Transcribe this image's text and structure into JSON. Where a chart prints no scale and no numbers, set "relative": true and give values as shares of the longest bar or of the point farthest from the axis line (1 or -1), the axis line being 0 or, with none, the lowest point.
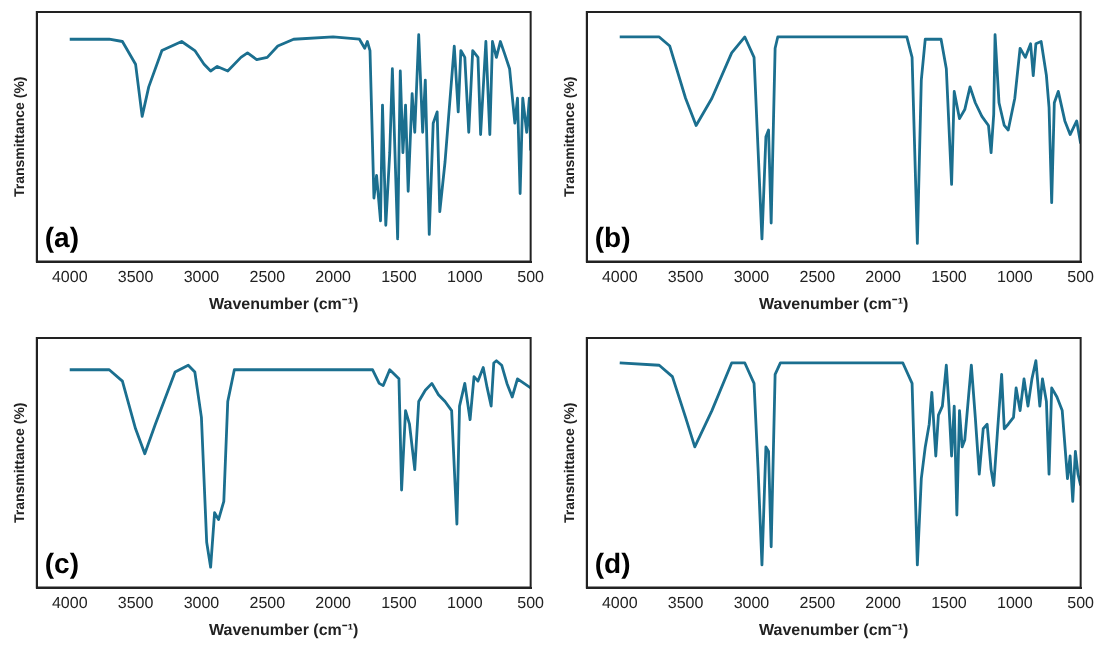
{
  "chart_data": [
    {
      "type": "line",
      "xlabel": "Wavenumber (cm⁻¹)",
      "ylabel": "Transmittance (%)",
      "annotations": [
        "(a)"
      ],
      "relative": true,
      "grid": false,
      "tick_labels": "x",
      "xlim": [
        4250,
        500
      ],
      "xticks": [
        4000,
        3500,
        3000,
        2500,
        2000,
        1500,
        1000,
        500
      ],
      "x": [
        4000,
        3700,
        3600,
        3500,
        3450,
        3400,
        3300,
        3150,
        3050,
        2980,
        2930,
        2880,
        2800,
        2700,
        2650,
        2580,
        2500,
        2420,
        2300,
        2000,
        1800,
        1760,
        1740,
        1720,
        1690,
        1670,
        1640,
        1625,
        1600,
        1570,
        1550,
        1510,
        1490,
        1470,
        1450,
        1430,
        1400,
        1380,
        1350,
        1320,
        1300,
        1270,
        1240,
        1210,
        1190,
        1150,
        1120,
        1080,
        1050,
        1030,
        1000,
        970,
        940,
        900,
        880,
        840,
        810,
        790,
        760,
        730,
        700,
        660,
        620,
        600,
        580,
        560,
        530,
        510,
        500
      ],
      "series": [
        {
          "color": "#1b6f8f",
          "values": [
            0.98,
            0.98,
            0.97,
            0.87,
            0.64,
            0.77,
            0.93,
            0.97,
            0.93,
            0.87,
            0.84,
            0.86,
            0.84,
            0.9,
            0.92,
            0.89,
            0.9,
            0.95,
            0.98,
            0.99,
            0.98,
            0.94,
            0.97,
            0.93,
            0.28,
            0.38,
            0.18,
            0.69,
            0.16,
            0.48,
            0.85,
            0.1,
            0.84,
            0.48,
            0.69,
            0.31,
            0.74,
            0.57,
            1,
            0.57,
            0.8,
            0.12,
            0.61,
            0.66,
            0.22,
            0.44,
            0.66,
            0.95,
            0.66,
            0.93,
            0.9,
            0.57,
            0.93,
            0.9,
            0.56,
            0.97,
            0.56,
            0.97,
            0.9,
            0.97,
            0.92,
            0.85,
            0.61,
            0.72,
            0.3,
            0.72,
            0.57,
            0.72,
            0.49
          ]
        }
      ]
    },
    {
      "type": "line",
      "xlabel": "Wavenumber (cm⁻¹)",
      "ylabel": "Transmittance (%)",
      "annotations": [
        "(b)"
      ],
      "relative": true,
      "grid": false,
      "tick_labels": "x",
      "xlim": [
        4250,
        500
      ],
      "xticks": [
        4000,
        3500,
        3000,
        2500,
        2000,
        1500,
        1000,
        500
      ],
      "x": [
        4000,
        3700,
        3620,
        3500,
        3420,
        3300,
        3150,
        3050,
        2980,
        2950,
        2920,
        2890,
        2870,
        2850,
        2820,
        2800,
        2000,
        1820,
        1780,
        1740,
        1710,
        1680,
        1560,
        1520,
        1480,
        1460,
        1420,
        1380,
        1340,
        1300,
        1250,
        1200,
        1180,
        1160,
        1150,
        1120,
        1080,
        1050,
        1000,
        960,
        920,
        880,
        860,
        840,
        800,
        760,
        740,
        720,
        700,
        670,
        620,
        580,
        530,
        500
      ],
      "series": [
        {
          "color": "#1b6f8f",
          "values": [
            0.99,
            0.99,
            0.95,
            0.72,
            0.6,
            0.72,
            0.92,
            0.99,
            0.9,
            0.5,
            0.1,
            0.55,
            0.58,
            0.17,
            0.94,
            0.99,
            0.99,
            0.99,
            0.9,
            0.08,
            0.8,
            0.98,
            0.98,
            0.85,
            0.34,
            0.75,
            0.63,
            0.67,
            0.77,
            0.7,
            0.64,
            0.6,
            0.48,
            0.65,
            1,
            0.7,
            0.6,
            0.58,
            0.72,
            0.94,
            0.9,
            0.96,
            0.82,
            0.96,
            0.97,
            0.82,
            0.68,
            0.26,
            0.7,
            0.75,
            0.62,
            0.56,
            0.62,
            0.52
          ]
        }
      ]
    },
    {
      "type": "line",
      "xlabel": "Wavenumber (cm⁻¹)",
      "ylabel": "Transmittance (%)",
      "annotations": [
        "(c)"
      ],
      "relative": true,
      "grid": false,
      "tick_labels": "x",
      "xlim": [
        4250,
        500
      ],
      "xticks": [
        4000,
        3500,
        3000,
        2500,
        2000,
        1500,
        1000,
        500
      ],
      "x": [
        4000,
        3700,
        3600,
        3500,
        3430,
        3350,
        3200,
        3100,
        3050,
        3000,
        2960,
        2930,
        2900,
        2870,
        2830,
        2800,
        2750,
        1700,
        1650,
        1620,
        1570,
        1500,
        1480,
        1450,
        1420,
        1380,
        1350,
        1300,
        1250,
        1200,
        1150,
        1100,
        1060,
        1040,
        1000,
        960,
        930,
        900,
        860,
        830,
        800,
        780,
        760,
        720,
        680,
        640,
        600,
        550,
        500
      ],
      "series": [
        {
          "color": "#1b6f8f",
          "values": [
            0.96,
            0.96,
            0.91,
            0.7,
            0.59,
            0.72,
            0.95,
            0.98,
            0.95,
            0.75,
            0.2,
            0.09,
            0.33,
            0.3,
            0.38,
            0.82,
            0.96,
            0.96,
            0.9,
            0.89,
            0.96,
            0.92,
            0.43,
            0.78,
            0.72,
            0.52,
            0.82,
            0.87,
            0.9,
            0.85,
            0.82,
            0.78,
            0.28,
            0.8,
            0.9,
            0.74,
            0.93,
            0.91,
            0.97,
            0.88,
            0.8,
            0.99,
            1,
            0.98,
            0.9,
            0.84,
            0.92,
            0.9,
            0.88
          ]
        }
      ]
    },
    {
      "type": "line",
      "xlabel": "Wavenumber (cm⁻¹)",
      "ylabel": "Transmittance (%)",
      "annotations": [
        "(d)"
      ],
      "relative": true,
      "grid": false,
      "tick_labels": "x",
      "xlim": [
        4250,
        500
      ],
      "xticks": [
        4000,
        3500,
        3000,
        2500,
        2000,
        1500,
        1000,
        500
      ],
      "x": [
        4000,
        3700,
        3600,
        3500,
        3430,
        3300,
        3150,
        3050,
        2980,
        2950,
        2920,
        2890,
        2870,
        2850,
        2820,
        2780,
        1850,
        1780,
        1740,
        1710,
        1680,
        1650,
        1630,
        1600,
        1580,
        1550,
        1520,
        1500,
        1480,
        1460,
        1440,
        1420,
        1400,
        1380,
        1350,
        1330,
        1300,
        1270,
        1240,
        1210,
        1180,
        1160,
        1130,
        1100,
        1080,
        1050,
        1010,
        990,
        960,
        930,
        900,
        870,
        840,
        810,
        790,
        760,
        740,
        720,
        680,
        640,
        600,
        580,
        560,
        540,
        520,
        500
      ],
      "series": [
        {
          "color": "#1b6f8f",
          "values": [
            0.99,
            0.98,
            0.93,
            0.75,
            0.62,
            0.78,
            0.99,
            0.99,
            0.9,
            0.53,
            0.1,
            0.62,
            0.6,
            0.18,
            0.94,
            0.99,
            0.99,
            0.9,
            0.1,
            0.48,
            0.62,
            0.72,
            0.86,
            0.58,
            0.76,
            0.8,
            0.98,
            0.8,
            0.58,
            0.8,
            0.32,
            0.78,
            0.62,
            0.65,
            0.85,
            0.98,
            0.75,
            0.5,
            0.7,
            0.72,
            0.52,
            0.45,
            0.7,
            0.94,
            0.7,
            0.72,
            0.75,
            0.88,
            0.78,
            0.92,
            0.8,
            0.92,
            1,
            0.8,
            0.92,
            0.82,
            0.5,
            0.88,
            0.84,
            0.78,
            0.48,
            0.58,
            0.38,
            0.6,
            0.5,
            0.45
          ]
        }
      ]
    }
  ]
}
